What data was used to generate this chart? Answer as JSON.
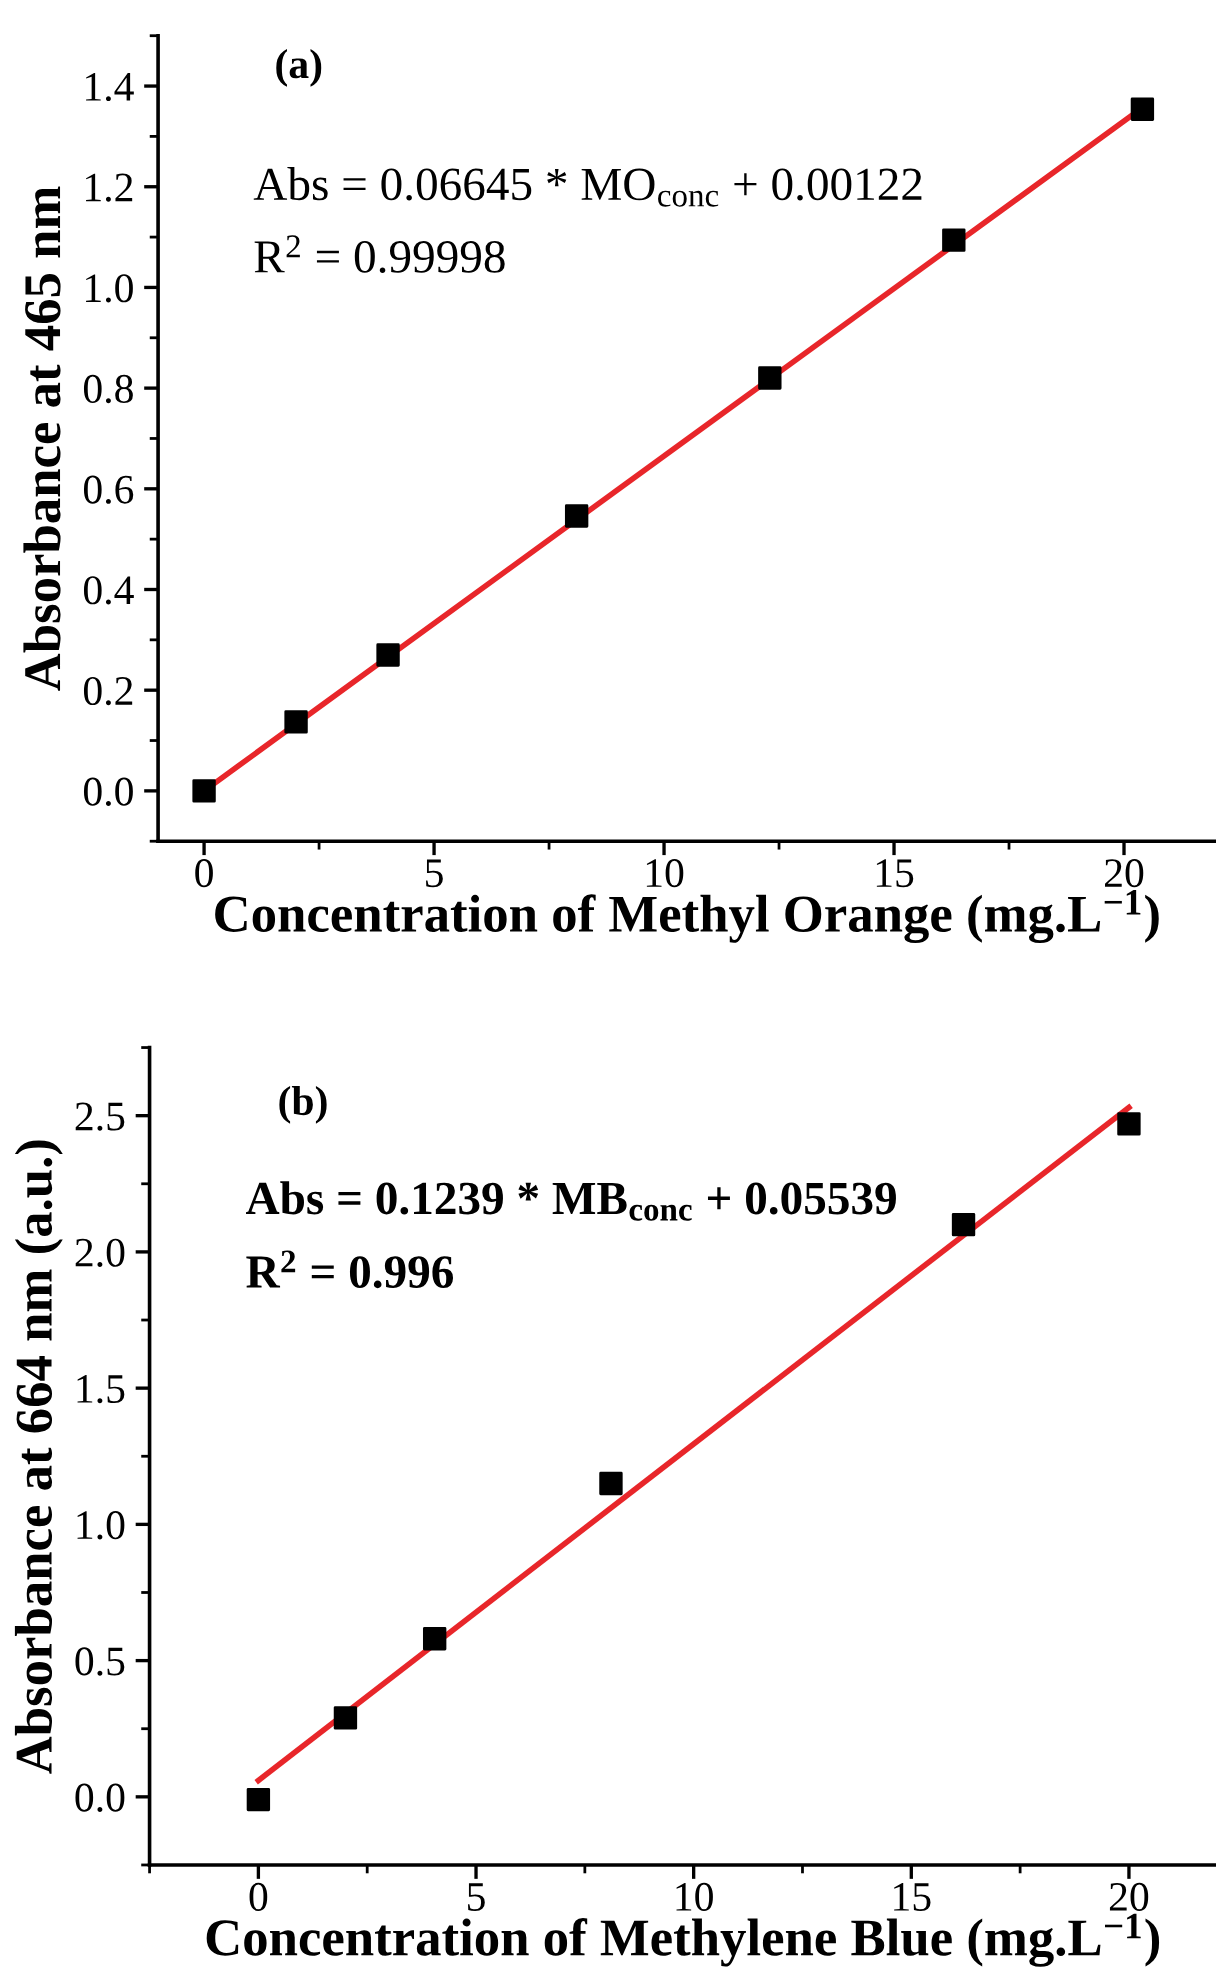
{
  "chart_data": [
    {
      "type": "scatter",
      "xlabel": "Concentration of Methyl Orange (mg.L$^{−1}$)",
      "ylabel": "Absorbance at 465 nm",
      "annotations": [
        "(a)",
        "Abs = 0.06645 * MO$_{conc}$ + 0.00122",
        "R$^{2}$ = 0.99998"
      ],
      "xlim": [
        -1,
        22
      ],
      "xticks": [
        0,
        5,
        10,
        15,
        20
      ],
      "ylim": [
        -0.1,
        1.5
      ],
      "yticks": [
        {
          "value": 0,
          "label": "0.0"
        },
        0.2,
        0.4,
        0.6,
        0.8,
        {
          "value": 1,
          "label": "1.0"
        },
        1.2,
        1.4
      ],
      "grid": false,
      "legend": false,
      "series": [
        {
          "color": "#000000",
          "marker": "square",
          "x": [
            0,
            2.0,
            4.0,
            8.1,
            12.3,
            16.3,
            20.4
          ],
          "values": [
            0,
            0.137,
            0.27,
            0.546,
            0.82,
            1.094,
            1.354
          ]
        },
        {
          "type": "line",
          "color": "#e8262a",
          "marker": "none",
          "line_style": "solid",
          "x": [
            0,
            20.4
          ],
          "values": [
            0.0,
            1.357
          ]
        }
      ]
    },
    {
      "type": "scatter",
      "xlabel": "Concentration of Methylene Blue (mg.L$^{−1}$)",
      "ylabel": "Absorbance at 664 nm (a.u.)",
      "annotations": [
        "(b)",
        "Abs = 0.1239 * MB$_{conc}$ + 0.05539",
        "R$^{2}$ = 0.996"
      ],
      "xlim": [
        -2.5,
        22
      ],
      "xticks": [
        0,
        5,
        10,
        15,
        20
      ],
      "ylim": [
        -0.25,
        2.75
      ],
      "yticks": [
        {
          "value": 0,
          "label": "0.0"
        },
        0.5,
        {
          "value": 1,
          "label": "1.0"
        },
        1.5,
        {
          "value": 2,
          "label": "2.0"
        },
        2.5
      ],
      "grid": false,
      "legend": false,
      "series": [
        {
          "color": "#000000",
          "marker": "square",
          "x": [
            0,
            2.0,
            4.05,
            8.1,
            16.2,
            20.0
          ],
          "values": [
            -0.01,
            0.29,
            0.58,
            1.15,
            2.1,
            2.47
          ]
        },
        {
          "type": "line",
          "color": "#e8262a",
          "marker": "none",
          "line_style": "solid",
          "x": [
            0,
            20
          ],
          "values": [
            0.06,
            2.53
          ]
        }
      ]
    }
  ]
}
